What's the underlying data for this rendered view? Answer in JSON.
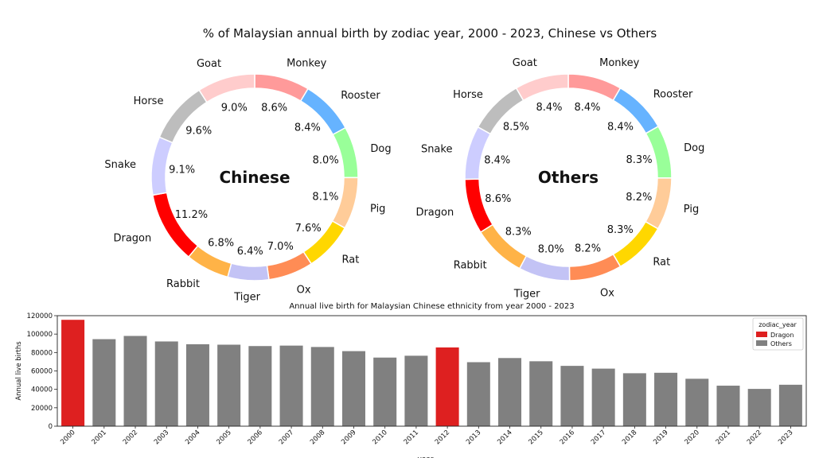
{
  "figure_title": "% of Malaysian annual birth by zodiac year, 2000 - 2023, Chinese vs Others",
  "chart_data": [
    {
      "type": "pie",
      "center_label": "Chinese",
      "slices": [
        {
          "label": "Monkey",
          "value": 8.6,
          "pct_label": "8.6%",
          "color": "#ff9a9a"
        },
        {
          "label": "Rooster",
          "value": 8.4,
          "pct_label": "8.4%",
          "color": "#66b3ff"
        },
        {
          "label": "Dog",
          "value": 8.0,
          "pct_label": "8.0%",
          "color": "#99ff99"
        },
        {
          "label": "Pig",
          "value": 8.1,
          "pct_label": "8.1%",
          "color": "#ffcc99"
        },
        {
          "label": "Rat",
          "value": 7.6,
          "pct_label": "7.6%",
          "color": "#ffd700"
        },
        {
          "label": "Ox",
          "value": 7.0,
          "pct_label": "7.0%",
          "color": "#ff8c55"
        },
        {
          "label": "Tiger",
          "value": 6.4,
          "pct_label": "6.4%",
          "color": "#c3c3f5"
        },
        {
          "label": "Rabbit",
          "value": 6.8,
          "pct_label": "6.8%",
          "color": "#ffb347"
        },
        {
          "label": "Dragon",
          "value": 11.2,
          "pct_label": "11.2%",
          "color": "#ff0000"
        },
        {
          "label": "Snake",
          "value": 9.1,
          "pct_label": "9.1%",
          "color": "#cdcdff"
        },
        {
          "label": "Horse",
          "value": 9.6,
          "pct_label": "9.6%",
          "color": "#bdbdbd"
        },
        {
          "label": "Goat",
          "value": 9.0,
          "pct_label": "9.0%",
          "color": "#ffcccc"
        }
      ]
    },
    {
      "type": "pie",
      "center_label": "Others",
      "slices": [
        {
          "label": "Monkey",
          "value": 8.4,
          "pct_label": "8.4%",
          "color": "#ff9a9a"
        },
        {
          "label": "Rooster",
          "value": 8.4,
          "pct_label": "8.4%",
          "color": "#66b3ff"
        },
        {
          "label": "Dog",
          "value": 8.3,
          "pct_label": "8.3%",
          "color": "#99ff99"
        },
        {
          "label": "Pig",
          "value": 8.2,
          "pct_label": "8.2%",
          "color": "#ffcc99"
        },
        {
          "label": "Rat",
          "value": 8.3,
          "pct_label": "8.3%",
          "color": "#ffd700"
        },
        {
          "label": "Ox",
          "value": 8.2,
          "pct_label": "8.2%",
          "color": "#ff8c55"
        },
        {
          "label": "Tiger",
          "value": 8.0,
          "pct_label": "8.0%",
          "color": "#c3c3f5"
        },
        {
          "label": "Rabbit",
          "value": 8.3,
          "pct_label": "8.3%",
          "color": "#ffb347"
        },
        {
          "label": "Dragon",
          "value": 8.6,
          "pct_label": "8.6%",
          "color": "#ff0000"
        },
        {
          "label": "Snake",
          "value": 8.4,
          "pct_label": "8.4%",
          "color": "#cdcdff"
        },
        {
          "label": "Horse",
          "value": 8.5,
          "pct_label": "8.5%",
          "color": "#bdbdbd"
        },
        {
          "label": "Goat",
          "value": 8.4,
          "pct_label": "8.4%",
          "color": "#ffcccc"
        }
      ]
    },
    {
      "type": "bar",
      "title": "Annual live birth for Malaysian Chinese ethnicity from year 2000 - 2023",
      "xlabel": "year",
      "ylabel": "Annual live births",
      "ylim": [
        0,
        120000
      ],
      "yticks": [
        0,
        20000,
        40000,
        60000,
        80000,
        100000,
        120000
      ],
      "categories": [
        "2000",
        "2001",
        "2002",
        "2003",
        "2004",
        "2005",
        "2006",
        "2007",
        "2008",
        "2009",
        "2010",
        "2011",
        "2012",
        "2013",
        "2014",
        "2015",
        "2016",
        "2017",
        "2018",
        "2019",
        "2020",
        "2021",
        "2022",
        "2023"
      ],
      "values": [
        115500,
        94500,
        98000,
        92000,
        89000,
        88500,
        87000,
        87500,
        86000,
        81500,
        74500,
        76500,
        85500,
        69500,
        74000,
        70500,
        65500,
        62500,
        57500,
        58000,
        51500,
        44000,
        40500,
        45000
      ],
      "groups": [
        "Dragon",
        "Others",
        "Others",
        "Others",
        "Others",
        "Others",
        "Others",
        "Others",
        "Others",
        "Others",
        "Others",
        "Others",
        "Dragon",
        "Others",
        "Others",
        "Others",
        "Others",
        "Others",
        "Others",
        "Others",
        "Others",
        "Others",
        "Others",
        "Others"
      ],
      "legend": {
        "title": "zodiac_year",
        "position": "top-right",
        "entries": [
          {
            "name": "Dragon",
            "color": "#de2020"
          },
          {
            "name": "Others",
            "color": "#808080"
          }
        ]
      }
    }
  ]
}
